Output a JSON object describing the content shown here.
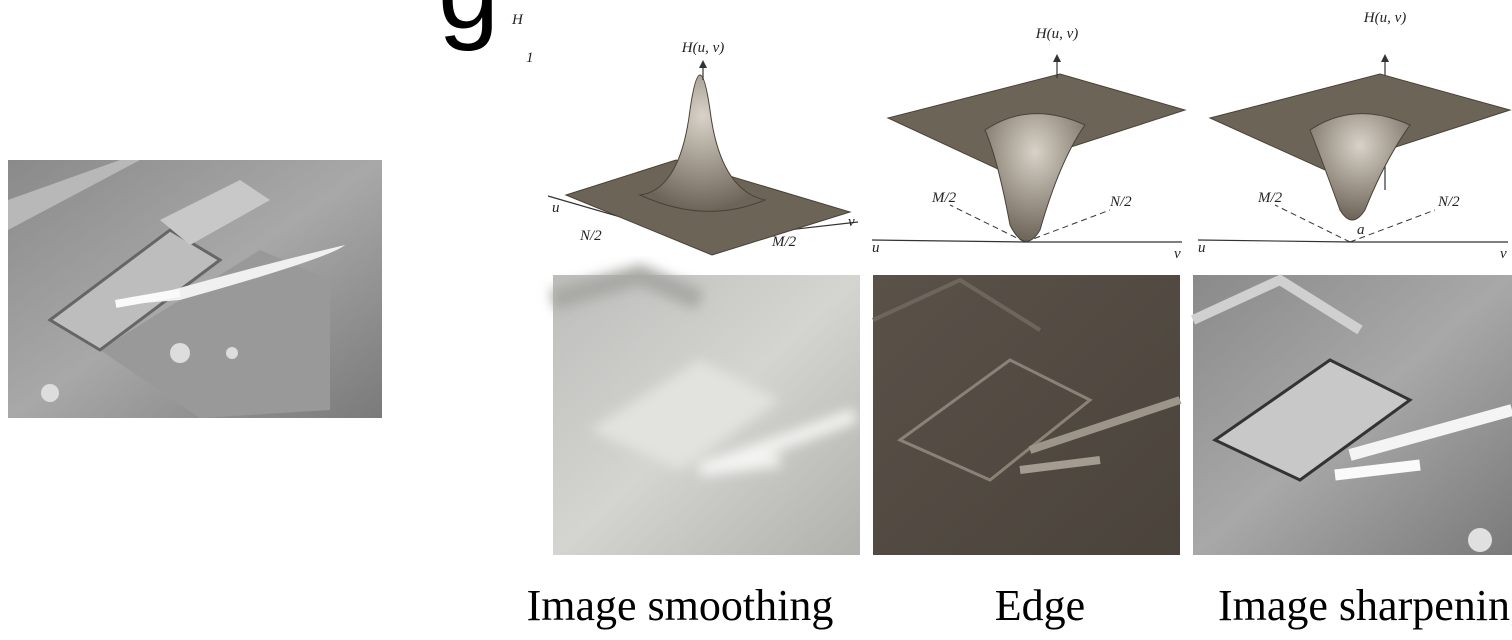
{
  "title_fragment": "g",
  "fragments": [
    "H",
    "1"
  ],
  "panels": [
    {
      "axis_label": "H(u, v)",
      "u_label": "u",
      "v_label": "v",
      "m_label": "M/2",
      "n_label": "N/2",
      "caption": "Image smoothing"
    },
    {
      "axis_label": "H(u, v)",
      "u_label": "u",
      "v_label": "v",
      "m_label": "M/2",
      "n_label": "N/2",
      "caption": "Edge"
    },
    {
      "axis_label": "H(u, v)",
      "u_label": "u",
      "v_label": "v",
      "m_label": "M/2",
      "n_label": "N/2",
      "extra_label": "a",
      "caption": "Image sharpening"
    }
  ]
}
